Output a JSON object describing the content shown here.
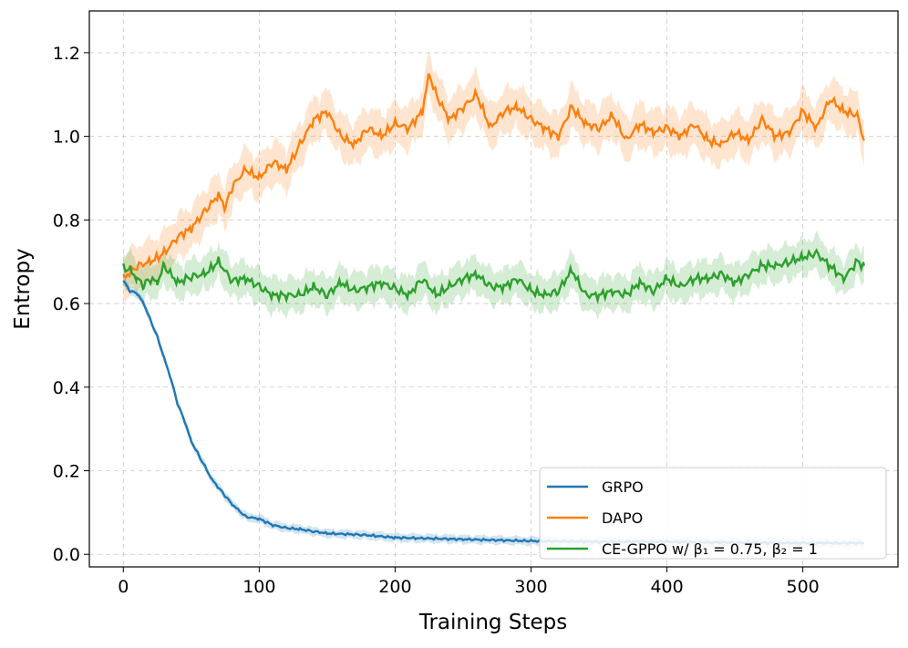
{
  "chart_data": {
    "type": "line",
    "title": "",
    "xlabel": "Training Steps",
    "ylabel": "Entropy",
    "xlim": [
      -25,
      570
    ],
    "ylim": [
      -0.03,
      1.3
    ],
    "xticks": [
      0,
      100,
      200,
      300,
      400,
      500
    ],
    "xtick_labels": [
      "0",
      "100",
      "200",
      "300",
      "400",
      "500"
    ],
    "yticks": [
      0.0,
      0.2,
      0.4,
      0.6,
      0.8,
      1.0,
      1.2
    ],
    "ytick_labels": [
      "0.0",
      "0.2",
      "0.4",
      "0.6",
      "0.8",
      "1.0",
      "1.2"
    ],
    "grid": true,
    "legend_placement": "lower-right",
    "series": [
      {
        "name": "GRPO",
        "color": "#1f77b4",
        "band_halfwidth": 0.01,
        "x": [
          0,
          5,
          10,
          15,
          20,
          25,
          30,
          35,
          40,
          45,
          50,
          55,
          60,
          65,
          70,
          75,
          80,
          85,
          90,
          100,
          110,
          120,
          130,
          140,
          150,
          175,
          200,
          250,
          300,
          350,
          400,
          450,
          500,
          545
        ],
        "y": [
          0.655,
          0.63,
          0.625,
          0.6,
          0.56,
          0.52,
          0.47,
          0.42,
          0.36,
          0.32,
          0.27,
          0.24,
          0.21,
          0.18,
          0.16,
          0.14,
          0.12,
          0.105,
          0.09,
          0.085,
          0.07,
          0.063,
          0.06,
          0.055,
          0.05,
          0.047,
          0.04,
          0.036,
          0.032,
          0.03,
          0.03,
          0.028,
          0.027,
          0.027
        ]
      },
      {
        "name": "DAPO",
        "color": "#ff7f0e",
        "band_halfwidth": 0.05,
        "x": [
          0,
          10,
          20,
          30,
          40,
          50,
          60,
          70,
          75,
          80,
          90,
          100,
          110,
          120,
          130,
          140,
          150,
          160,
          170,
          180,
          190,
          200,
          210,
          220,
          225,
          230,
          240,
          250,
          260,
          270,
          280,
          290,
          300,
          310,
          320,
          330,
          340,
          350,
          360,
          370,
          380,
          390,
          400,
          410,
          420,
          430,
          440,
          450,
          460,
          470,
          480,
          490,
          500,
          510,
          520,
          530,
          540,
          545
        ],
        "y": [
          0.66,
          0.69,
          0.7,
          0.72,
          0.76,
          0.78,
          0.82,
          0.86,
          0.83,
          0.88,
          0.92,
          0.9,
          0.94,
          0.92,
          0.98,
          1.04,
          1.06,
          1.0,
          0.98,
          1.02,
          1.0,
          1.03,
          1.02,
          1.06,
          1.15,
          1.1,
          1.04,
          1.07,
          1.1,
          1.02,
          1.06,
          1.07,
          1.04,
          1.02,
          1.0,
          1.07,
          1.03,
          1.02,
          1.05,
          0.99,
          1.03,
          1.01,
          1.02,
          1.0,
          1.03,
          0.99,
          0.98,
          1.01,
          0.99,
          1.04,
          1.0,
          1.01,
          1.06,
          1.02,
          1.09,
          1.06,
          1.05,
          0.99
        ]
      },
      {
        "name": "CE-GPPO w/ β₁ = 0.75,  β₂ = 1",
        "color": "#2ca02c",
        "band_halfwidth": 0.04,
        "x": [
          0,
          5,
          10,
          15,
          20,
          25,
          30,
          40,
          50,
          60,
          70,
          80,
          90,
          100,
          110,
          120,
          130,
          140,
          150,
          160,
          170,
          180,
          190,
          200,
          210,
          220,
          230,
          240,
          250,
          260,
          270,
          280,
          290,
          300,
          310,
          320,
          330,
          340,
          350,
          360,
          370,
          380,
          390,
          400,
          410,
          420,
          430,
          440,
          450,
          460,
          470,
          480,
          490,
          500,
          510,
          520,
          530,
          540,
          545
        ],
        "y": [
          0.685,
          0.68,
          0.66,
          0.645,
          0.66,
          0.65,
          0.69,
          0.65,
          0.665,
          0.67,
          0.7,
          0.655,
          0.66,
          0.64,
          0.62,
          0.62,
          0.62,
          0.64,
          0.62,
          0.65,
          0.63,
          0.64,
          0.65,
          0.635,
          0.62,
          0.66,
          0.62,
          0.64,
          0.66,
          0.67,
          0.64,
          0.64,
          0.66,
          0.63,
          0.62,
          0.63,
          0.68,
          0.62,
          0.62,
          0.63,
          0.62,
          0.65,
          0.63,
          0.66,
          0.64,
          0.66,
          0.66,
          0.67,
          0.65,
          0.67,
          0.69,
          0.69,
          0.7,
          0.71,
          0.72,
          0.69,
          0.66,
          0.7,
          0.69
        ]
      }
    ]
  }
}
